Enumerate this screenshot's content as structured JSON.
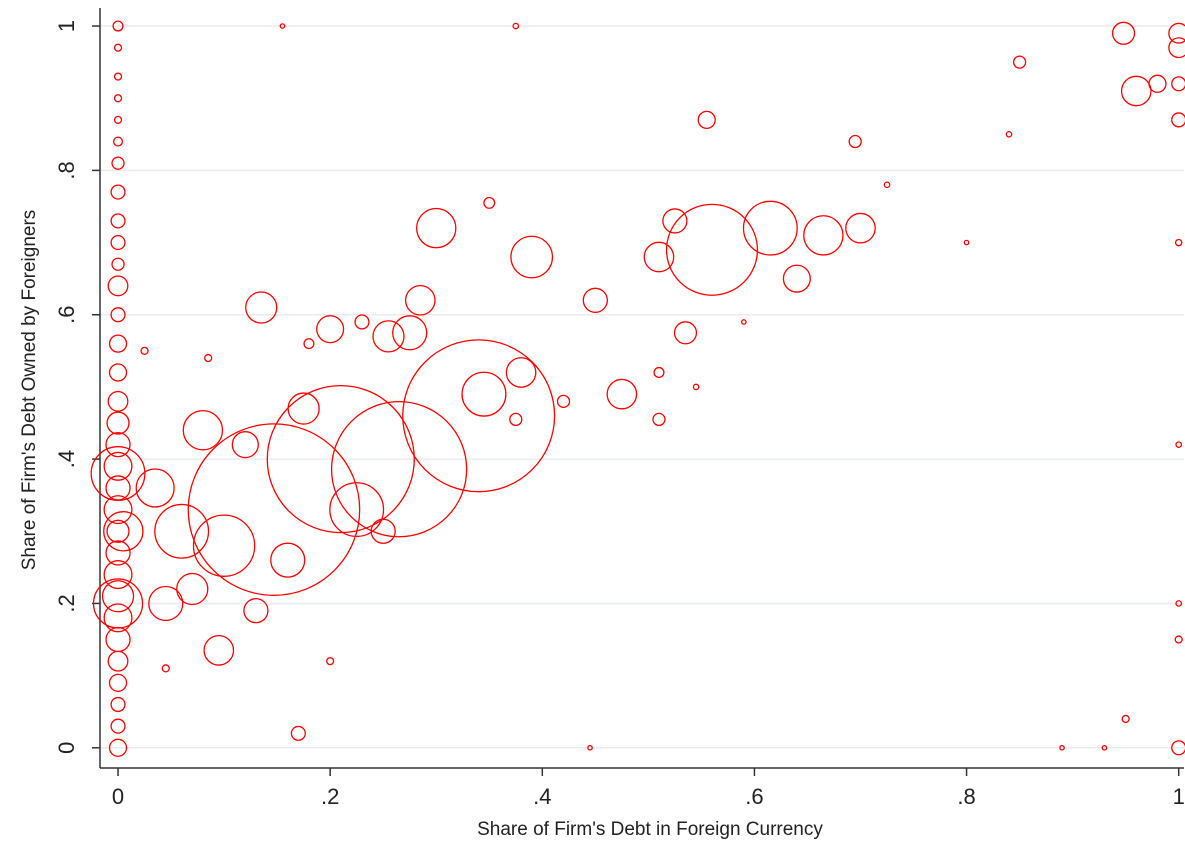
{
  "chart_data": {
    "type": "scatter",
    "x_label": "Share of Firm's Debt in Foreign Currency",
    "y_label": "Share of Firm's Debt Owned by Foreigners",
    "color": "#ff0000",
    "x": [
      0,
      0,
      0,
      0,
      0,
      0,
      0,
      0,
      0,
      0,
      0,
      0,
      0,
      0,
      0,
      0,
      0,
      0,
      0,
      0,
      0,
      0,
      0,
      0,
      0,
      0,
      0,
      0,
      0,
      0,
      0,
      0,
      0,
      0,
      0.005,
      1,
      0.948,
      0.85,
      0.96,
      0.555,
      0.695,
      0.35,
      0.3,
      0.39,
      0.525,
      0.51,
      0.56,
      0.615,
      0.665,
      0.7,
      0.64,
      0.135,
      0.2,
      0.23,
      0.255,
      0.275,
      0.285,
      0.18,
      0.45,
      0.535,
      0.475,
      0.38,
      0.34,
      0.345,
      0.147,
      0.21,
      0.265,
      0.08,
      0.175,
      0.1,
      0.06,
      0.045,
      0.13,
      0.095,
      0.17,
      0.225,
      0.035,
      0.07,
      0.16,
      0.25,
      0.12,
      0.42,
      0.51,
      0.375,
      0.51,
      0.155,
      0.375,
      0.725,
      0.84,
      0.8,
      0.59,
      0.545,
      0.025,
      0.085,
      0.2,
      0.045,
      0.95,
      0.89,
      0.445,
      0.93,
      1,
      1,
      1,
      1,
      1,
      1,
      1,
      1,
      0.98
    ],
    "values": [
      1,
      0.97,
      0.93,
      0.9,
      0.87,
      0.84,
      0.81,
      0.77,
      0.73,
      0.7,
      0.67,
      0.64,
      0.6,
      0.56,
      0.52,
      0.48,
      0.45,
      0.42,
      0.39,
      0.36,
      0.33,
      0.3,
      0.27,
      0.24,
      0.21,
      0.18,
      0.15,
      0.12,
      0.09,
      0.06,
      0.03,
      0,
      0.38,
      0.2,
      0.3,
      0.99,
      0.99,
      0.95,
      0.91,
      0.87,
      0.84,
      0.755,
      0.72,
      0.68,
      0.73,
      0.68,
      0.69,
      0.72,
      0.71,
      0.72,
      0.65,
      0.61,
      0.58,
      0.59,
      0.57,
      0.575,
      0.62,
      0.56,
      0.62,
      0.575,
      0.49,
      0.52,
      0.46,
      0.49,
      0.33,
      0.4,
      0.386,
      0.44,
      0.47,
      0.28,
      0.3,
      0.2,
      0.19,
      0.135,
      0.02,
      0.33,
      0.36,
      0.22,
      0.26,
      0.3,
      0.42,
      0.48,
      0.455,
      0.455,
      0.52,
      1,
      1,
      0.78,
      0.85,
      0.7,
      0.59,
      0.5,
      0.55,
      0.54,
      0.12,
      0.11,
      0.04,
      0,
      0,
      0,
      0,
      0.15,
      0.42,
      0.2,
      0.7,
      0.87,
      0.92,
      0.97,
      0.92
    ],
    "sizes": [
      1,
      0.5,
      0.5,
      0.5,
      0.5,
      0.8,
      1.5,
      2,
      2,
      2,
      1.5,
      4,
      2,
      3,
      3,
      4,
      5,
      6,
      8,
      6,
      8,
      5,
      6,
      8,
      10,
      8,
      6,
      4,
      3,
      2,
      2,
      3,
      30,
      25,
      16,
      4,
      5,
      1.5,
      9,
      3,
      1.5,
      1.2,
      16,
      18,
      6,
      9,
      86,
      30,
      16,
      9,
      7.5,
      10,
      7.5,
      2,
      10,
      12,
      9,
      1,
      6,
      5,
      9,
      9,
      240,
      20,
      306,
      225,
      190,
      16,
      10,
      39,
      30,
      12,
      6,
      9,
      2,
      30,
      15,
      10,
      12,
      6,
      7,
      1.5,
      1.5,
      1.5,
      1,
      0.2,
      0.3,
      0.3,
      0.3,
      0.2,
      0.2,
      0.3,
      0.5,
      0.5,
      0.5,
      0.5,
      0.5,
      0.2,
      0.2,
      0.2,
      2,
      0.5,
      0.3,
      0.3,
      0.4,
      2,
      2,
      4,
      3
    ],
    "xlim": [
      -0.017,
      1.005
    ],
    "ylim": [
      -0.028,
      1.025
    ],
    "xticks": [
      0,
      {
        "value": 0.2,
        "label": ".2"
      },
      {
        "value": 0.4,
        "label": ".4"
      },
      {
        "value": 0.6,
        "label": ".6"
      },
      {
        "value": 0.8,
        "label": ".8"
      },
      1
    ],
    "yticks": [
      0,
      {
        "value": 0.2,
        "label": ".2"
      },
      {
        "value": 0.4,
        "label": ".4"
      },
      {
        "value": 0.6,
        "label": ".6"
      },
      {
        "value": 0.8,
        "label": ".8"
      },
      1
    ],
    "grid": true
  }
}
